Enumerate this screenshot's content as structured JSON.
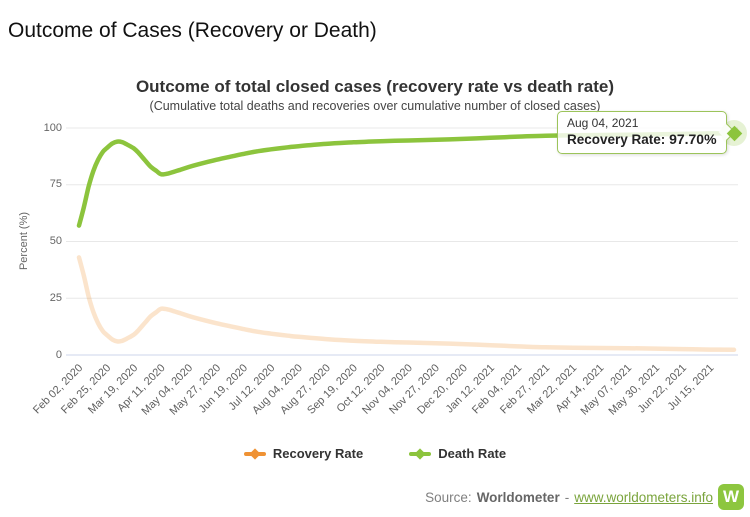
{
  "page": {
    "title": "Outcome of Cases (Recovery or Death)"
  },
  "chart": {
    "title": "Outcome of total closed cases (recovery rate vs death rate)",
    "subtitle": "(Cumulative total deaths and recoveries over cumulative number of closed cases)",
    "y_axis_title": "Percent (%)",
    "legend": [
      {
        "label": "Death Rate",
        "color": "#EF9234"
      },
      {
        "label": "Recovery Rate",
        "color": "#8CC43D"
      }
    ],
    "tooltip": {
      "date": "Aug 04, 2021",
      "series_label": "Recovery Rate:",
      "value": "97.70%"
    }
  },
  "chart_data": {
    "type": "line",
    "title": "Outcome of total closed cases (recovery rate vs death rate)",
    "subtitle": "(Cumulative total deaths and recoveries over cumulative number of closed cases)",
    "xlabel": "",
    "ylabel": "Percent (%)",
    "ylim": [
      0,
      100
    ],
    "y_ticks": [
      0,
      25,
      50,
      75,
      100
    ],
    "grid": true,
    "legend_position": "bottom",
    "x_unit": "days since Feb 02, 2020",
    "x_tick_interval_days": 23,
    "x_tick_labels": [
      "Feb 02, 2020",
      "Feb 25, 2020",
      "Mar 19, 2020",
      "Apr 11, 2020",
      "May 04, 2020",
      "May 27, 2020",
      "Jun 19, 2020",
      "Jul 12, 2020",
      "Aug 04, 2020",
      "Aug 27, 2020",
      "Sep 19, 2020",
      "Oct 12, 2020",
      "Nov 04, 2020",
      "Nov 27, 2020",
      "Dec 20, 2020",
      "Jan 12, 2021",
      "Feb 04, 2021",
      "Feb 27, 2021",
      "Mar 22, 2021",
      "Apr 14, 2021",
      "May 07, 2021",
      "May 30, 2021",
      "Jun 22, 2021",
      "Jul 15, 2021"
    ],
    "highlighted_point": {
      "date": "Aug 04, 2021",
      "series": "Recovery Rate",
      "value": 97.7
    },
    "series": [
      {
        "name": "Recovery Rate",
        "color": "#8CC43D",
        "faded": false,
        "points": [
          [
            0,
            57
          ],
          [
            4,
            65
          ],
          [
            8,
            74
          ],
          [
            12,
            81
          ],
          [
            16,
            86
          ],
          [
            20,
            89.5
          ],
          [
            23,
            91
          ],
          [
            28,
            93.2
          ],
          [
            32,
            94
          ],
          [
            36,
            93.8
          ],
          [
            40,
            92.8
          ],
          [
            46,
            91
          ],
          [
            50,
            89
          ],
          [
            55,
            86
          ],
          [
            60,
            83
          ],
          [
            65,
            81
          ],
          [
            69,
            79.6
          ],
          [
            75,
            80
          ],
          [
            80,
            80.8
          ],
          [
            85,
            81.6
          ],
          [
            92,
            82.8
          ],
          [
            100,
            84
          ],
          [
            115,
            86
          ],
          [
            130,
            87.7
          ],
          [
            138,
            88.6
          ],
          [
            150,
            89.8
          ],
          [
            161,
            90.6
          ],
          [
            175,
            91.5
          ],
          [
            184,
            92
          ],
          [
            207,
            93
          ],
          [
            230,
            93.7
          ],
          [
            253,
            94.2
          ],
          [
            276,
            94.5
          ],
          [
            299,
            94.8
          ],
          [
            322,
            95.2
          ],
          [
            345,
            95.7
          ],
          [
            368,
            96.2
          ],
          [
            391,
            96.6
          ],
          [
            414,
            96.8
          ],
          [
            437,
            96.9
          ],
          [
            460,
            97
          ],
          [
            483,
            97.2
          ],
          [
            506,
            97.4
          ],
          [
            529,
            97.6
          ],
          [
            549,
            97.7
          ]
        ]
      },
      {
        "name": "Death Rate",
        "color": "#EF9234",
        "faded": true,
        "points": [
          [
            0,
            43
          ],
          [
            4,
            35
          ],
          [
            8,
            26
          ],
          [
            12,
            19
          ],
          [
            16,
            14
          ],
          [
            20,
            10.5
          ],
          [
            23,
            9
          ],
          [
            28,
            6.8
          ],
          [
            32,
            6
          ],
          [
            36,
            6.2
          ],
          [
            40,
            7.2
          ],
          [
            46,
            9
          ],
          [
            50,
            11
          ],
          [
            55,
            14
          ],
          [
            60,
            17
          ],
          [
            65,
            19
          ],
          [
            69,
            20.4
          ],
          [
            75,
            20
          ],
          [
            80,
            19.2
          ],
          [
            85,
            18.4
          ],
          [
            92,
            17.2
          ],
          [
            100,
            16
          ],
          [
            115,
            14
          ],
          [
            130,
            12.3
          ],
          [
            138,
            11.4
          ],
          [
            150,
            10.2
          ],
          [
            161,
            9.4
          ],
          [
            175,
            8.5
          ],
          [
            184,
            8
          ],
          [
            207,
            7
          ],
          [
            230,
            6.3
          ],
          [
            253,
            5.8
          ],
          [
            276,
            5.5
          ],
          [
            299,
            5.2
          ],
          [
            322,
            4.8
          ],
          [
            345,
            4.3
          ],
          [
            368,
            3.8
          ],
          [
            391,
            3.4
          ],
          [
            414,
            3.2
          ],
          [
            437,
            3.1
          ],
          [
            460,
            3
          ],
          [
            483,
            2.8
          ],
          [
            506,
            2.6
          ],
          [
            529,
            2.4
          ],
          [
            549,
            2.3
          ]
        ]
      }
    ]
  },
  "footer": {
    "source_label": "Source:",
    "source_name": "Worldometer",
    "separator": "-",
    "link_text": "www.worldometers.info",
    "logo_letter": "W"
  }
}
